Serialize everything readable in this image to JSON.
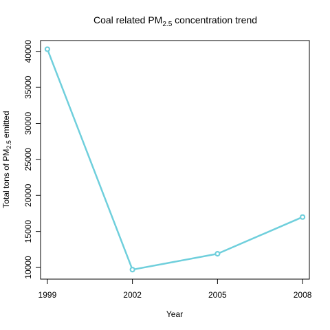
{
  "chart_data": {
    "type": "line",
    "title_main": "Coal related PM",
    "title_sub": "2.5",
    "title_rest": " concentration trend",
    "xlabel": "Year",
    "ylabel_main": "Total tons of PM",
    "ylabel_sub": "2.5",
    "ylabel_rest": " emitted",
    "x": [
      1999,
      2002,
      2005,
      2008
    ],
    "x_tick_labels": [
      "1999",
      "2002",
      "2005",
      "2008"
    ],
    "y_ticks": [
      10000,
      15000,
      20000,
      25000,
      30000,
      35000,
      40000
    ],
    "y_tick_labels": [
      "10000",
      "15000",
      "20000",
      "25000",
      "30000",
      "35000",
      "40000"
    ],
    "xlim": [
      1998.76,
      2008.24
    ],
    "ylim": [
      8380,
      41500
    ],
    "series": [
      {
        "values": [
          40300,
          9700,
          11900,
          17000
        ],
        "color": "#6FCFDC"
      }
    ],
    "grid": false,
    "legend": false
  }
}
